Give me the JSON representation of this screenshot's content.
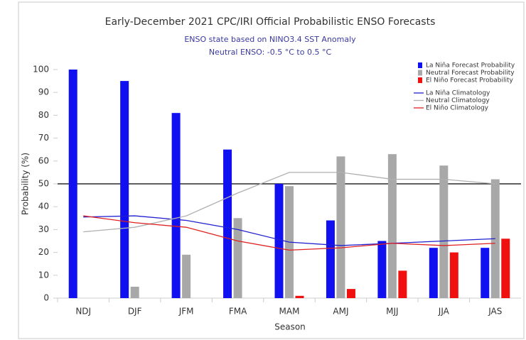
{
  "chart_data": {
    "type": "bar",
    "title": "Early-December 2021 CPC/IRI Official Probabilistic ENSO Forecasts",
    "subtitle": [
      "ENSO state based on NINO3.4 SST Anomaly",
      "Neutral ENSO: -0.5 °C to 0.5 °C"
    ],
    "x_label": "Season",
    "y_label": "Probability (%)",
    "categories": [
      "NDJ",
      "DJF",
      "JFM",
      "FMA",
      "MAM",
      "AMJ",
      "MJJ",
      "JJA",
      "JAS"
    ],
    "ylim": [
      0,
      100
    ],
    "yticks": [
      0,
      10,
      20,
      30,
      40,
      50,
      60,
      70,
      80,
      90,
      100
    ],
    "reference_line": 50,
    "legend": "upper right",
    "series": [
      {
        "name": "La Niña Forecast Probability",
        "kind": "bar",
        "color": "#1010f0",
        "values": [
          100,
          95,
          81,
          65,
          50,
          34,
          25,
          22,
          22
        ]
      },
      {
        "name": "Neutral Forecast Probability",
        "kind": "bar",
        "color": "#a8a8a8",
        "values": [
          0,
          5,
          19,
          35,
          49,
          62,
          63,
          58,
          52
        ]
      },
      {
        "name": "El Niño Forecast Probability",
        "kind": "bar",
        "color": "#f01010",
        "values": [
          0,
          0,
          0,
          0,
          1,
          4,
          12,
          20,
          26
        ]
      },
      {
        "name": "La Niña Climatology",
        "kind": "line",
        "color": "#2020d0",
        "values": [
          35.5,
          36,
          34,
          30,
          24.5,
          23,
          24,
          25,
          26
        ]
      },
      {
        "name": "Neutral Climatology",
        "kind": "line",
        "color": "#b0b0b0",
        "values": [
          29,
          31,
          36,
          46,
          55,
          55,
          52,
          52,
          50
        ]
      },
      {
        "name": "El Niño Climatology",
        "kind": "line",
        "color": "#e02020",
        "values": [
          36,
          33,
          31,
          25,
          21,
          22,
          24,
          23,
          24
        ]
      }
    ]
  }
}
